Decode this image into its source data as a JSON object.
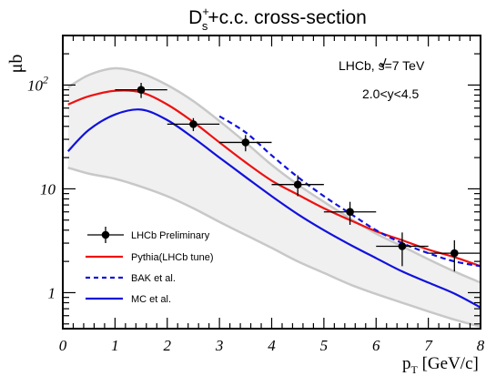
{
  "chart_data": {
    "type": "line",
    "title": {
      "main": "D",
      "sup": "+",
      "sub": "s",
      "rest": "+c.c. cross-section"
    },
    "ylabel": "μb",
    "xlabel": {
      "main": "p",
      "sub": "T",
      "rest": " [GeV/c]"
    },
    "xlim": [
      0,
      8
    ],
    "ylim": [
      0.45,
      300
    ],
    "yscale": "log",
    "grid": false,
    "x_ticks": [
      0,
      1,
      2,
      3,
      4,
      5,
      6,
      7,
      8
    ],
    "y_ticks": [
      {
        "value": 1,
        "label": "1"
      },
      {
        "value": 10,
        "label": "10"
      },
      {
        "value": 100,
        "label": "10",
        "sup": "2"
      }
    ],
    "annotations": {
      "experiment": "LHCb, s=7 TeV",
      "rapidity": "2.0<y<4.5"
    },
    "legend_position": "bottom-left",
    "legend": [
      {
        "label": "LHCb Preliminary",
        "style": "marker",
        "color": "#000000"
      },
      {
        "label": "Pythia(LHCb tune)",
        "style": "line",
        "color": "#ee1111"
      },
      {
        "label": "BAK et al.",
        "style": "dashed",
        "color": "#1111dd"
      },
      {
        "label": "MC et al.",
        "style": "line",
        "color": "#1111dd"
      }
    ],
    "data_points": {
      "name": "LHCb Preliminary",
      "color": "#000000",
      "x": [
        1.5,
        2.5,
        3.5,
        4.5,
        5.5,
        6.5,
        7.5
      ],
      "y": [
        90,
        42,
        28,
        11,
        6,
        2.8,
        2.4
      ],
      "x_err": [
        0.5,
        0.5,
        0.5,
        0.5,
        0.5,
        0.5,
        0.5
      ],
      "y_err_low": [
        15,
        6,
        5,
        2.5,
        1.5,
        1.0,
        0.8
      ],
      "y_err_high": [
        15,
        6,
        5,
        2.5,
        1.5,
        1.0,
        0.8
      ]
    },
    "band": {
      "color": "#f0f0f0",
      "edge_color": "#c8c8c8",
      "x": [
        0.1,
        0.5,
        1.0,
        1.5,
        2.0,
        2.5,
        3.0,
        3.5,
        4.0,
        4.5,
        5.0,
        5.5,
        6.0,
        6.5,
        7.0,
        7.5,
        8.0
      ],
      "upper": [
        95,
        125,
        145,
        130,
        100,
        70,
        45,
        28,
        17,
        11,
        7.5,
        5.2,
        3.7,
        2.8,
        2.1,
        1.6,
        1.25
      ],
      "lower": [
        16,
        14,
        12.5,
        10.5,
        8.5,
        6.5,
        4.8,
        3.6,
        2.7,
        2.0,
        1.55,
        1.2,
        0.97,
        0.8,
        0.66,
        0.55,
        0.47
      ]
    },
    "series": [
      {
        "name": "Pythia(LHCb tune)",
        "color": "#ee1111",
        "dash": false,
        "x": [
          0.1,
          0.5,
          1.0,
          1.5,
          2.0,
          2.5,
          3.0,
          3.5,
          4.0,
          4.5,
          5.0,
          5.5,
          6.0,
          6.5,
          7.0,
          7.5,
          8.0
        ],
        "y": [
          65,
          78,
          88,
          85,
          65,
          44,
          28,
          18,
          12,
          8.8,
          6.5,
          5.0,
          3.9,
          3.2,
          2.6,
          2.2,
          1.8
        ]
      },
      {
        "name": "BAK et al.",
        "color": "#1111dd",
        "dash": true,
        "x": [
          3.0,
          3.5,
          4.0,
          4.5,
          5.0,
          5.5,
          6.0,
          6.5,
          7.0,
          7.5,
          8.0
        ],
        "y": [
          50,
          35,
          21,
          13,
          8.5,
          5.8,
          4.0,
          3.0,
          2.4,
          2.0,
          1.8
        ]
      },
      {
        "name": "MC et al.",
        "color": "#1111dd",
        "dash": false,
        "x": [
          0.1,
          0.5,
          1.0,
          1.5,
          2.0,
          2.5,
          3.0,
          3.5,
          4.0,
          4.5,
          5.0,
          5.5,
          6.0,
          6.5,
          7.0,
          7.5,
          8.0
        ],
        "y": [
          23,
          37,
          52,
          58,
          46,
          31,
          20,
          13,
          8.5,
          5.7,
          4.0,
          2.9,
          2.15,
          1.6,
          1.25,
          0.98,
          0.72
        ]
      }
    ]
  }
}
